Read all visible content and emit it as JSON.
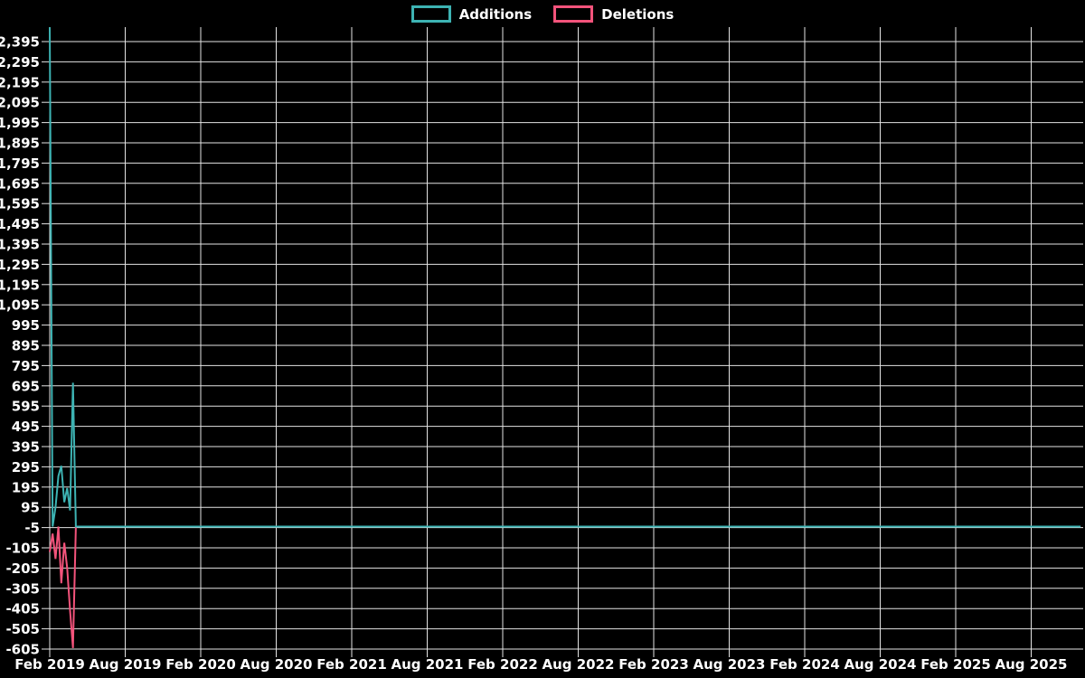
{
  "page": {
    "background": "#000000",
    "text_color": "#ffffff"
  },
  "legend": {
    "items": [
      {
        "label": "Additions",
        "color": "#3db3b3"
      },
      {
        "label": "Deletions",
        "color": "#f3537b"
      }
    ]
  },
  "chart_data": {
    "type": "line",
    "title": "",
    "x_tick_labels": [
      "Feb 2019",
      "Aug 2019",
      "Feb 2020",
      "Aug 2020",
      "Feb 2021",
      "Aug 2021",
      "Feb 2022",
      "Aug 2022",
      "Feb 2023",
      "Aug 2023",
      "Feb 2024",
      "Aug 2024",
      "Feb 2025",
      "Aug 2025"
    ],
    "weeks_per_x_tick": 26,
    "weeks_total": 356,
    "y_ticks": [
      2395,
      2295,
      2195,
      2095,
      1995,
      1895,
      1795,
      1695,
      1595,
      1495,
      1395,
      1295,
      1195,
      1095,
      995,
      895,
      795,
      695,
      595,
      495,
      395,
      295,
      195,
      95,
      -5,
      -105,
      -205,
      -305,
      -405,
      -505,
      -605
    ],
    "ylim": [
      -605,
      2466
    ],
    "grid": true,
    "grid_color": "#e3e3e3",
    "axis_text_color": "#ffffff",
    "legend_position": "top-center",
    "series": [
      {
        "name": "Additions",
        "color": "#3db3b3",
        "head_values": [
          2466,
          0,
          95,
          250,
          300,
          120,
          190,
          80,
          710,
          0
        ],
        "tail_value": 0
      },
      {
        "name": "Deletions",
        "color": "#f3537b",
        "head_values": [
          -125,
          -35,
          -160,
          0,
          -280,
          -80,
          -205,
          -415,
          -600,
          0
        ],
        "tail_value": 0
      }
    ]
  }
}
